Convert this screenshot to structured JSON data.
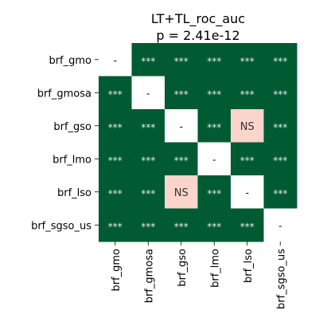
{
  "chart_data": {
    "type": "heatmap",
    "title": "LT+TL_roc_auc",
    "subtitle": "p = 2.41e-12",
    "row_labels": [
      "brf_gmo",
      "brf_gmosa",
      "brf_gso",
      "brf_lmo",
      "brf_lso",
      "brf_sgso_us"
    ],
    "col_labels": [
      "brf_gmo",
      "brf_gmosa",
      "brf_gso",
      "brf_lmo",
      "brf_lso",
      "brf_sgso_us"
    ],
    "cells": [
      [
        "-",
        "***",
        "***",
        "***",
        "***",
        "***"
      ],
      [
        "***",
        "-",
        "***",
        "***",
        "***",
        "***"
      ],
      [
        "***",
        "***",
        "-",
        "***",
        "NS",
        "***"
      ],
      [
        "***",
        "***",
        "***",
        "-",
        "***",
        "***"
      ],
      [
        "***",
        "***",
        "NS",
        "***",
        "-",
        "***"
      ],
      [
        "***",
        "***",
        "***",
        "***",
        "***",
        "-"
      ]
    ],
    "colors": {
      "significant": "#005a32",
      "not_significant": "#fbd5cb",
      "diagonal": "#ffffff",
      "significant_text": "#e8e8e8",
      "not_significant_text": "#333333",
      "diagonal_text": "#000000"
    }
  }
}
